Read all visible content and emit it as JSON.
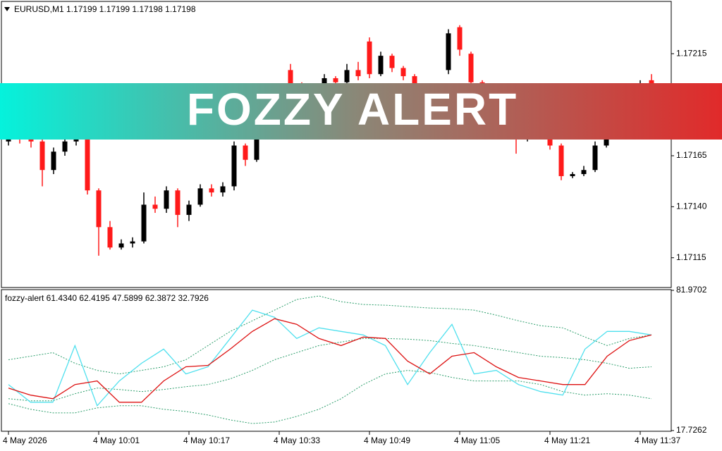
{
  "banner": {
    "text": "FOZZY ALERT"
  },
  "chart_data": [
    {
      "type": "candlestick",
      "header": "EURUSD,M1  1.17199 1.17199 1.17198 1.17198",
      "categories": [
        "4 May 2026",
        null,
        null,
        null,
        null,
        null,
        null,
        null,
        "4 May 10:01",
        null,
        null,
        null,
        null,
        null,
        null,
        null,
        "4 May 10:17",
        null,
        null,
        null,
        null,
        null,
        null,
        null,
        "4 May 10:33",
        null,
        null,
        null,
        null,
        null,
        null,
        null,
        "4 May 10:49",
        null,
        null,
        null,
        null,
        null,
        null,
        null,
        "4 May 11:05",
        null,
        null,
        null,
        null,
        null,
        null,
        null,
        "4 May 11:21",
        null,
        null,
        null,
        null,
        null,
        null,
        null,
        "4 May 11:37",
        null
      ],
      "open": [
        1.17172,
        1.17175,
        1.17174,
        1.17172,
        1.17158,
        1.17167,
        1.17172,
        1.17174,
        1.17148,
        1.1713,
        1.1712,
        1.17122,
        1.17123,
        1.17141,
        1.17139,
        1.17148,
        1.17136,
        1.17141,
        1.17149,
        1.17147,
        1.1715,
        1.1717,
        1.17163,
        1.17175,
        1.17186,
        1.17207,
        1.172,
        1.17195,
        1.17198,
        1.17203,
        1.17201,
        1.17207,
        1.17221,
        1.17205,
        1.17214,
        1.17208,
        1.17204,
        1.17199,
        1.17193,
        1.17207,
        1.17228,
        1.17215,
        1.17201,
        1.17195,
        1.17189,
        1.17182,
        1.17174,
        1.17177,
        1.17179,
        1.1717,
        1.17155,
        1.17156,
        1.17158,
        1.1717,
        1.17182,
        1.17186,
        1.17195,
        1.17202
      ],
      "high": [
        1.17178,
        1.17177,
        1.17176,
        1.17173,
        1.17169,
        1.17174,
        1.17176,
        1.17175,
        1.17149,
        1.17133,
        1.17124,
        1.17125,
        1.17147,
        1.17145,
        1.1715,
        1.17149,
        1.17143,
        1.17151,
        1.17151,
        1.17152,
        1.17172,
        1.17171,
        1.17177,
        1.17188,
        1.17198,
        1.1721,
        1.17201,
        1.172,
        1.17205,
        1.17204,
        1.1721,
        1.17211,
        1.17223,
        1.17216,
        1.17215,
        1.17209,
        1.17205,
        1.172,
        1.17198,
        1.17227,
        1.17229,
        1.17216,
        1.17202,
        1.17196,
        1.1719,
        1.17183,
        1.17179,
        1.17181,
        1.1718,
        1.17171,
        1.17157,
        1.1716,
        1.17172,
        1.17184,
        1.17188,
        1.17197,
        1.17202,
        1.17205
      ],
      "low": [
        1.1717,
        1.17171,
        1.17169,
        1.1715,
        1.17156,
        1.17165,
        1.1717,
        1.17146,
        1.17116,
        1.17119,
        1.17119,
        1.1712,
        1.17122,
        1.17137,
        1.17137,
        1.1713,
        1.17133,
        1.1714,
        1.17145,
        1.17145,
        1.17148,
        1.1716,
        1.17162,
        1.17174,
        1.17185,
        1.17195,
        1.17192,
        1.17193,
        1.17196,
        1.17199,
        1.172,
        1.17202,
        1.17203,
        1.17204,
        1.17206,
        1.17202,
        1.17197,
        1.17191,
        1.17192,
        1.17205,
        1.17214,
        1.17199,
        1.17193,
        1.17187,
        1.1718,
        1.17166,
        1.17172,
        1.17175,
        1.17168,
        1.17153,
        1.17154,
        1.17155,
        1.17157,
        1.17169,
        1.1718,
        1.17184,
        1.17193,
        1.17197
      ],
      "close": [
        1.17175,
        1.17174,
        1.17172,
        1.17158,
        1.17167,
        1.17172,
        1.17174,
        1.17148,
        1.1713,
        1.1712,
        1.17122,
        1.17123,
        1.17141,
        1.17139,
        1.17148,
        1.17136,
        1.17141,
        1.17149,
        1.17147,
        1.1715,
        1.1717,
        1.17163,
        1.17175,
        1.17186,
        1.17196,
        1.172,
        1.17195,
        1.17198,
        1.17203,
        1.17201,
        1.17207,
        1.17204,
        1.17205,
        1.17214,
        1.17208,
        1.17204,
        1.17199,
        1.17193,
        1.17196,
        1.17225,
        1.17217,
        1.17201,
        1.17195,
        1.17189,
        1.17182,
        1.17174,
        1.17177,
        1.17179,
        1.1717,
        1.17155,
        1.17156,
        1.17158,
        1.1717,
        1.17182,
        1.17186,
        1.17195,
        1.172,
        1.17199
      ],
      "up_color": "#000000",
      "down_color": "#ff1a1a",
      "doji_color": "#22bb22",
      "ylim": [
        1.171004,
        1.172403
      ],
      "yticks": [
        1.17215,
        {
          "value": 1.17165,
          "label": "1.17165"
        },
        {
          "value": 1.1714,
          "label": "1.17140"
        },
        1.17115
      ]
    },
    {
      "type": "line",
      "header": "fozzy-alert 61.4340 62.4195 47.5899 62.3872 32.7926",
      "ylim": [
        17.7262,
        81.9702
      ],
      "yticks": [
        81.9702,
        17.7262
      ],
      "series": [
        {
          "color": "#2a9d6a",
          "dashed": true,
          "values": [
            50.18,
            51.8,
            53.42,
            48.55,
            45.31,
            43.69,
            45.31,
            46.93,
            50.18,
            56.67,
            63.16,
            68.02,
            72.89,
            77.76,
            79.38,
            76.78,
            75.49,
            75.16,
            74.51,
            73.86,
            73.54,
            72.89,
            70.62,
            68.02,
            65.75,
            64.78,
            60.56,
            56.67,
            59.91,
            61.53
          ]
        },
        {
          "color": "#2a9d6a",
          "dashed": true,
          "values": [
            32.33,
            31.35,
            31.35,
            34.6,
            37.2,
            36.55,
            35.57,
            36.55,
            37.84,
            38.82,
            41.41,
            45.31,
            50.18,
            53.42,
            56.67,
            58.29,
            59.91,
            59.91,
            59.59,
            58.94,
            57.64,
            56.67,
            55.04,
            53.42,
            51.8,
            51.15,
            50.18,
            48.55,
            46.28,
            46.93
          ]
        },
        {
          "color": "#2a9d6a",
          "dashed": true,
          "values": [
            30.06,
            27.46,
            25.84,
            25.84,
            28.11,
            29.08,
            29.08,
            27.46,
            26.49,
            24.86,
            22.59,
            20.97,
            21.62,
            24.22,
            27.46,
            32.33,
            38.82,
            43.69,
            45.31,
            44.33,
            42.06,
            40.44,
            40.44,
            40.44,
            38.82,
            35.57,
            33.95,
            34.6,
            33.95,
            32.33
          ]
        },
        {
          "color": "#4fe0ee",
          "dashed": false,
          "values": [
            38.82,
            30.71,
            30.71,
            56.67,
            29.08,
            40.44,
            48.55,
            55.04,
            43.69,
            46.93,
            59.91,
            72.89,
            69.65,
            59.91,
            64.78,
            63.16,
            61.53,
            56.67,
            38.82,
            53.42,
            66.4,
            43.69,
            45.31,
            38.82,
            35.57,
            33.95,
            55.04,
            63.16,
            63.16,
            61.53
          ]
        },
        {
          "color": "#dd1111",
          "dashed": false,
          "values": [
            37.2,
            33.95,
            32.33,
            38.82,
            40.44,
            30.71,
            30.71,
            40.44,
            46.93,
            47.58,
            55.04,
            63.16,
            69.0,
            66.4,
            59.91,
            56.67,
            60.56,
            59.91,
            49.53,
            43.69,
            51.8,
            53.42,
            46.93,
            42.06,
            40.44,
            38.82,
            38.82,
            51.8,
            58.94,
            61.53
          ]
        }
      ]
    }
  ]
}
